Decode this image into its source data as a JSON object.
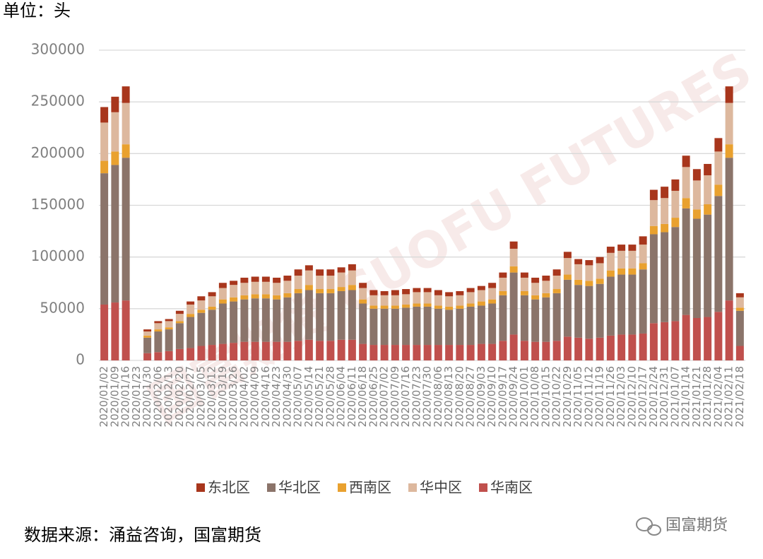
{
  "chart_data": {
    "type": "stacked-bar",
    "unit_label": "单位：头",
    "source": "数据来源：涌益咨询，国富期货",
    "watermark": "国富期货",
    "background_watermark": "国富期货 GUOFU FUTURES",
    "categories": [
      "2020/01/02",
      "2020/01/09",
      "2020/01/16",
      "2020/01/23",
      "2020/01/30",
      "2020/02/06",
      "2020/02/13",
      "2020/02/20",
      "2020/02/27",
      "2020/03/05",
      "2020/03/12",
      "2020/03/19",
      "2020/03/26",
      "2020/04/02",
      "2020/04/09",
      "2020/04/16",
      "2020/04/23",
      "2020/04/30",
      "2020/05/07",
      "2020/05/14",
      "2020/05/21",
      "2020/05/28",
      "2020/06/04",
      "2020/06/11",
      "2020/06/18",
      "2020/06/25",
      "2020/07/02",
      "2020/07/09",
      "2020/07/16",
      "2020/07/23",
      "2020/07/30",
      "2020/08/06",
      "2020/08/13",
      "2020/08/20",
      "2020/08/27",
      "2020/09/03",
      "2020/09/10",
      "2020/09/17",
      "2020/09/24",
      "2020/10/01",
      "2020/10/08",
      "2020/10/15",
      "2020/10/22",
      "2020/10/29",
      "2020/11/05",
      "2020/11/12",
      "2020/11/19",
      "2020/11/26",
      "2020/12/03",
      "2020/12/10",
      "2020/12/17",
      "2020/12/24",
      "2020/12/31",
      "2021/01/07",
      "2021/01/14",
      "2021/01/21",
      "2021/01/28",
      "2021/02/04",
      "2021/02/11",
      "2021/02/18"
    ],
    "series": [
      {
        "name": "东北区",
        "color": "#a8361c",
        "values": [
          15000,
          15000,
          16000,
          null,
          2000,
          2000,
          2000,
          3000,
          3000,
          4000,
          4000,
          5000,
          4000,
          5000,
          5000,
          5000,
          5000,
          5000,
          6000,
          5000,
          6000,
          6000,
          5000,
          6000,
          5000,
          5000,
          4000,
          5000,
          5000,
          4000,
          4000,
          5000,
          4000,
          4000,
          4000,
          4000,
          5000,
          5000,
          7000,
          5000,
          5000,
          5000,
          6000,
          6000,
          5000,
          5000,
          6000,
          6000,
          6000,
          6000,
          8000,
          10000,
          11000,
          11000,
          11000,
          11000,
          11000,
          13000,
          16000,
          4000
        ]
      },
      {
        "name": "华北区",
        "color": "#8b746a",
        "values": [
          127000,
          133000,
          138000,
          null,
          15000,
          20000,
          21000,
          25000,
          30000,
          32000,
          34000,
          39000,
          40000,
          41000,
          42000,
          42000,
          41000,
          43000,
          46000,
          48000,
          46000,
          46000,
          47000,
          48000,
          39000,
          35000,
          35000,
          35000,
          36000,
          37000,
          37000,
          35000,
          34000,
          35000,
          37000,
          37000,
          39000,
          44000,
          60000,
          44000,
          41000,
          43000,
          46000,
          55000,
          51000,
          51000,
          52000,
          57000,
          58000,
          58000,
          62000,
          86000,
          87000,
          91000,
          103000,
          96000,
          99000,
          112000,
          138000,
          34000
        ]
      },
      {
        "name": "西南区",
        "color": "#e9a12f",
        "values": [
          12000,
          13000,
          13000,
          null,
          2000,
          2000,
          2000,
          2000,
          3000,
          3000,
          3000,
          4000,
          4000,
          4000,
          4000,
          4000,
          4000,
          4000,
          4000,
          5000,
          4000,
          4000,
          4000,
          5000,
          4000,
          3000,
          3000,
          3000,
          3000,
          3000,
          3000,
          3000,
          3000,
          3000,
          3000,
          4000,
          4000,
          4000,
          6000,
          4000,
          4000,
          4000,
          4000,
          5000,
          5000,
          5000,
          5000,
          6000,
          6000,
          6000,
          6000,
          8000,
          8000,
          9000,
          10000,
          9000,
          10000,
          11000,
          13000,
          3000
        ]
      },
      {
        "name": "华中区",
        "color": "#ddb89e",
        "values": [
          37000,
          38000,
          40000,
          null,
          4000,
          6000,
          6000,
          7000,
          9000,
          9000,
          10000,
          11000,
          12000,
          12000,
          12000,
          12000,
          12000,
          12000,
          13000,
          14000,
          13000,
          13000,
          14000,
          14000,
          11000,
          10000,
          10000,
          10000,
          10000,
          11000,
          11000,
          10000,
          10000,
          10000,
          11000,
          11000,
          11000,
          13000,
          17000,
          13000,
          12000,
          12000,
          13000,
          16000,
          15000,
          15000,
          15000,
          17000,
          17000,
          17000,
          18000,
          25000,
          25000,
          26000,
          30000,
          28000,
          28000,
          32000,
          40000,
          10000
        ]
      },
      {
        "name": "华南区",
        "color": "#c0504d",
        "values": [
          54000,
          56000,
          58000,
          null,
          7000,
          8000,
          9000,
          11000,
          12000,
          14000,
          15000,
          16000,
          17000,
          18000,
          18000,
          18000,
          18000,
          18000,
          19000,
          20000,
          19000,
          19000,
          20000,
          20000,
          16000,
          15000,
          15000,
          15000,
          15000,
          15000,
          15000,
          15000,
          15000,
          15000,
          15000,
          16000,
          16000,
          19000,
          25000,
          19000,
          18000,
          18000,
          19000,
          23000,
          22000,
          21000,
          22000,
          24000,
          25000,
          25000,
          26000,
          36000,
          37000,
          38000,
          44000,
          41000,
          42000,
          47000,
          58000,
          14000
        ]
      }
    ],
    "ylim": [
      0,
      300000
    ],
    "yticks": [
      0,
      50000,
      100000,
      150000,
      200000,
      250000,
      300000
    ],
    "grid": true,
    "legend": "bottom"
  }
}
